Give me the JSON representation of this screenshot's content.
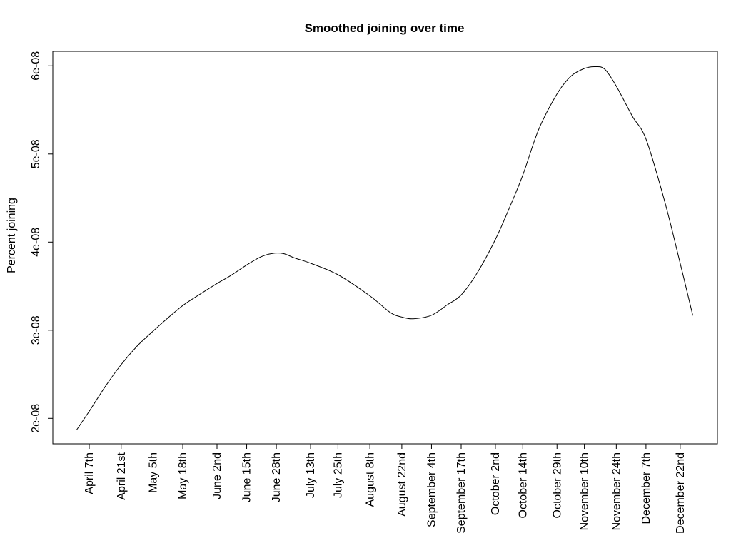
{
  "window": {
    "background_color": "#ffffff",
    "foreground_color": "#000000"
  },
  "chart_data": {
    "type": "line",
    "title": "Smoothed joining over time",
    "xlabel": "",
    "ylabel": "Percent joining",
    "grid": false,
    "legend": null,
    "line_color": "#000000",
    "y_ticks": [
      {
        "label": "2e-08",
        "value": 2e-08
      },
      {
        "label": "3e-08",
        "value": 3e-08
      },
      {
        "label": "4e-08",
        "value": 4e-08
      },
      {
        "label": "5e-08",
        "value": 5e-08
      },
      {
        "label": "6e-08",
        "value": 6e-08
      }
    ],
    "ylim": [
      1.71e-08,
      6.16e-08
    ],
    "x_ticks": [
      {
        "label": "April 7th",
        "day": 0
      },
      {
        "label": "April 21st",
        "day": 14
      },
      {
        "label": "May 5th",
        "day": 28
      },
      {
        "label": "May 18th",
        "day": 41
      },
      {
        "label": "June 2nd",
        "day": 56
      },
      {
        "label": "June 15th",
        "day": 69
      },
      {
        "label": "June 28th",
        "day": 82
      },
      {
        "label": "July 13th",
        "day": 97
      },
      {
        "label": "July 25th",
        "day": 109
      },
      {
        "label": "August 8th",
        "day": 123
      },
      {
        "label": "August 22nd",
        "day": 137
      },
      {
        "label": "September 4th",
        "day": 150
      },
      {
        "label": "September 17th",
        "day": 163
      },
      {
        "label": "October 2nd",
        "day": 178
      },
      {
        "label": "October 14th",
        "day": 190
      },
      {
        "label": "October 29th",
        "day": 205
      },
      {
        "label": "November 10th",
        "day": 217
      },
      {
        "label": "November 24th",
        "day": 231
      },
      {
        "label": "December 7th",
        "day": 244
      },
      {
        "label": "December 22nd",
        "day": 259
      }
    ],
    "series": [
      {
        "name": "smoothed-joining",
        "points": [
          {
            "day": -5.5,
            "value": 1.87e-08
          },
          {
            "day": 0,
            "value": 2.08e-08
          },
          {
            "day": 7,
            "value": 2.36e-08
          },
          {
            "day": 14,
            "value": 2.61e-08
          },
          {
            "day": 21,
            "value": 2.82e-08
          },
          {
            "day": 28,
            "value": 2.99e-08
          },
          {
            "day": 34.5,
            "value": 3.14e-08
          },
          {
            "day": 41,
            "value": 3.28e-08
          },
          {
            "day": 48,
            "value": 3.4e-08
          },
          {
            "day": 56,
            "value": 3.53e-08
          },
          {
            "day": 62,
            "value": 3.62e-08
          },
          {
            "day": 69,
            "value": 3.74e-08
          },
          {
            "day": 75,
            "value": 3.83e-08
          },
          {
            "day": 80,
            "value": 3.87e-08
          },
          {
            "day": 85,
            "value": 3.87e-08
          },
          {
            "day": 90,
            "value": 3.82e-08
          },
          {
            "day": 97,
            "value": 3.76e-08
          },
          {
            "day": 109,
            "value": 3.63e-08
          },
          {
            "day": 123,
            "value": 3.39e-08
          },
          {
            "day": 132,
            "value": 3.2e-08
          },
          {
            "day": 137,
            "value": 3.15e-08
          },
          {
            "day": 142,
            "value": 3.13e-08
          },
          {
            "day": 150,
            "value": 3.17e-08
          },
          {
            "day": 157,
            "value": 3.29e-08
          },
          {
            "day": 163,
            "value": 3.4e-08
          },
          {
            "day": 170,
            "value": 3.65e-08
          },
          {
            "day": 178,
            "value": 4.03e-08
          },
          {
            "day": 184,
            "value": 4.38e-08
          },
          {
            "day": 190,
            "value": 4.76e-08
          },
          {
            "day": 197,
            "value": 5.28e-08
          },
          {
            "day": 205,
            "value": 5.68e-08
          },
          {
            "day": 211,
            "value": 5.88e-08
          },
          {
            "day": 217,
            "value": 5.97e-08
          },
          {
            "day": 222,
            "value": 5.99e-08
          },
          {
            "day": 226,
            "value": 5.96e-08
          },
          {
            "day": 231,
            "value": 5.77e-08
          },
          {
            "day": 238,
            "value": 5.43e-08
          },
          {
            "day": 244,
            "value": 5.17e-08
          },
          {
            "day": 252,
            "value": 4.48e-08
          },
          {
            "day": 259,
            "value": 3.76e-08
          },
          {
            "day": 264.5,
            "value": 3.17e-08
          }
        ]
      }
    ]
  }
}
